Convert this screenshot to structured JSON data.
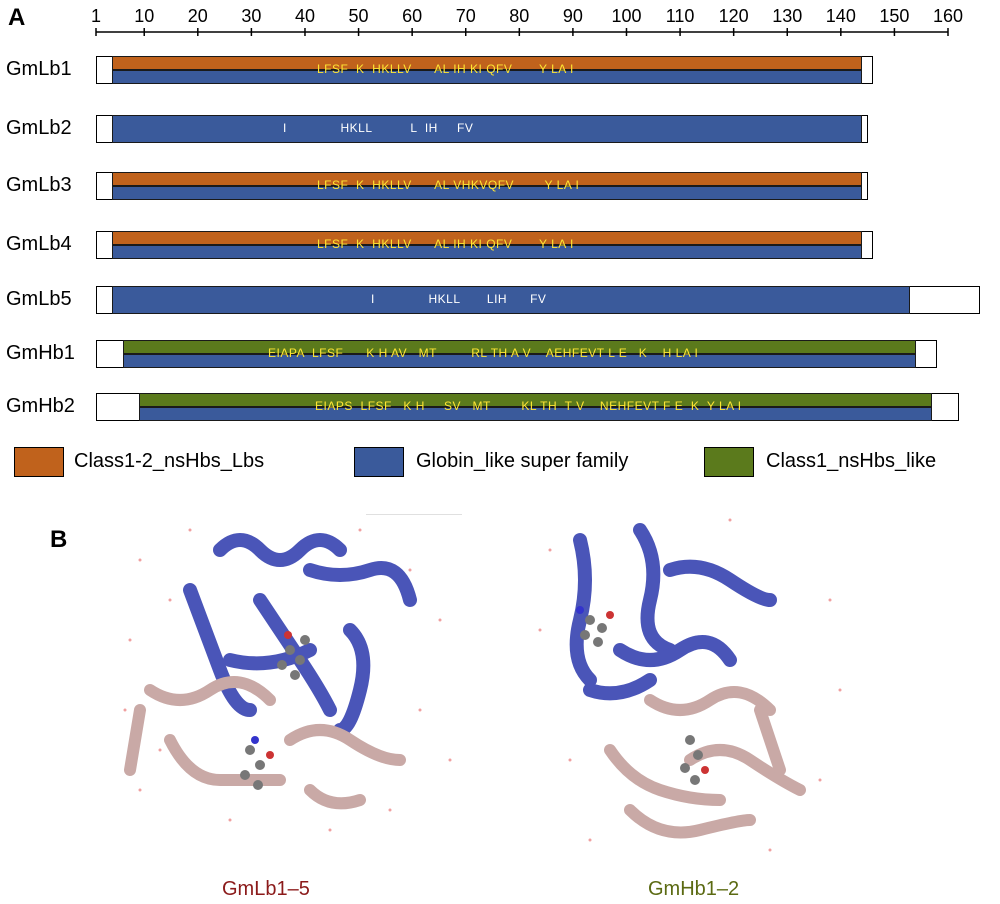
{
  "panels": {
    "a": "A",
    "b": "B"
  },
  "colors": {
    "class12": "#c0621c",
    "globin": "#3a5a9b",
    "class1": "#5b7a1c",
    "motif_white": "#ffffff",
    "motif_yellow": "#ffe633",
    "helix_blue": "#4a55b8",
    "helix_pink": "#c9a9a6",
    "caption_lb": "#8b1a1a",
    "caption_hb": "#5b6a12"
  },
  "scale": {
    "ticks": [
      "1",
      "10",
      "20",
      "30",
      "40",
      "50",
      "60",
      "70",
      "80",
      "90",
      "100",
      "110",
      "120",
      "130",
      "140",
      "150",
      "160"
    ],
    "values": [
      1,
      10,
      20,
      30,
      40,
      50,
      60,
      70,
      80,
      90,
      100,
      110,
      120,
      130,
      140,
      150,
      160
    ]
  },
  "proteins": [
    {
      "name": "GmLb1",
      "length": 146,
      "domain_start": 4,
      "domain_end": 144,
      "top": "class12",
      "bottom": "globin",
      "motif": "LFSF  K  HKLLV      AL IH KI QFV       Y LA I"
    },
    {
      "name": "GmLb2",
      "length": 145,
      "domain_start": 4,
      "domain_end": 144,
      "top": "globin",
      "bottom": "globin",
      "motif": "I              HKLL          L  IH     FV"
    },
    {
      "name": "GmLb3",
      "length": 145,
      "domain_start": 4,
      "domain_end": 144,
      "top": "class12",
      "bottom": "globin",
      "motif": "LFSF  K  HKLLV      AL VHKVQFV        Y LA I"
    },
    {
      "name": "GmLb4",
      "length": 146,
      "domain_start": 4,
      "domain_end": 144,
      "top": "class12",
      "bottom": "globin",
      "motif": "LFSF  K  HKLLV      AL IH KI QFV       Y LA I"
    },
    {
      "name": "GmLb5",
      "length": 166,
      "domain_start": 4,
      "domain_end": 153,
      "top": "globin",
      "bottom": "globin",
      "motif": "I              HKLL       LIH      FV"
    },
    {
      "name": "GmHb1",
      "length": 158,
      "domain_start": 6,
      "domain_end": 154,
      "top": "class1",
      "bottom": "globin",
      "motif": "EIAPA  LFSF      K H AV   MT         RL TH A V    AEHFEVT L E   K    H LA I"
    },
    {
      "name": "GmHb2",
      "length": 162,
      "domain_start": 9,
      "domain_end": 157,
      "top": "class1",
      "bottom": "globin",
      "motif": "EIAPS  LFSF   K H     SV   MT        KL TH  T V    NEHFEVT F E  K  Y LA I"
    }
  ],
  "legend": [
    {
      "key": "class12",
      "label": "Class1-2_nsHbs_Lbs"
    },
    {
      "key": "globin",
      "label": "Globin_like super family"
    },
    {
      "key": "class1",
      "label": "Class1_nsHbs_like"
    }
  ],
  "structures": [
    {
      "caption": "GmLb1–5",
      "color_key": "caption_lb"
    },
    {
      "caption": "GmHb1–2",
      "color_key": "caption_hb"
    }
  ]
}
